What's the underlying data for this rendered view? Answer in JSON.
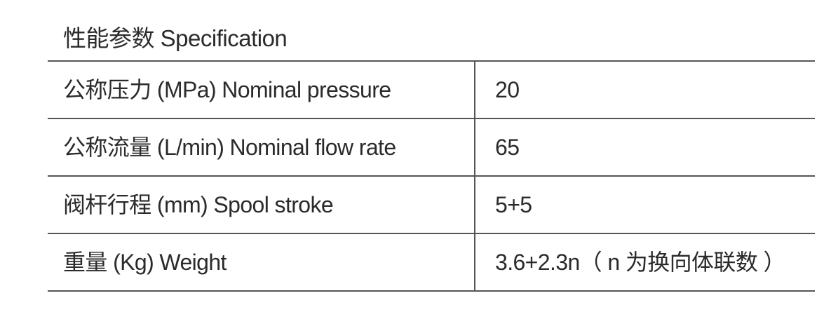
{
  "header": {
    "title": "性能参数 Specification"
  },
  "table": {
    "rows": [
      [
        "公称压力 (MPa) Nominal pressure",
        "20"
      ],
      [
        "公称流量 (L/min) Nominal flow rate",
        "65"
      ],
      [
        "阀杆行程 (mm) Spool stroke",
        "5+5"
      ],
      [
        "重量 (Kg) Weight",
        "3.6+2.3n（ n 为换向体联数 ）"
      ]
    ]
  }
}
